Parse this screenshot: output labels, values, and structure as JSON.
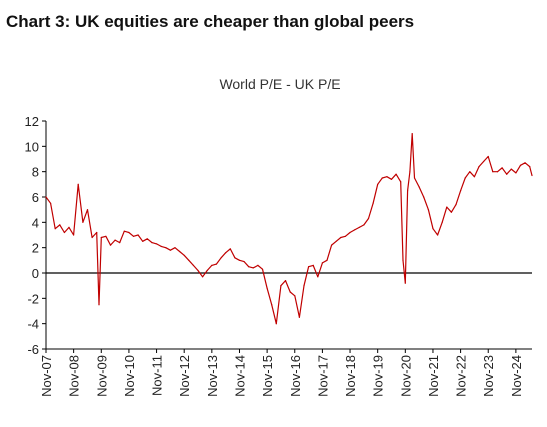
{
  "heading": "Chart 3: UK equities are cheaper than global peers",
  "chart_data": {
    "type": "line",
    "title": "World P/E - UK P/E",
    "xlabel": "",
    "ylabel": "",
    "ylim": [
      -6,
      12
    ],
    "yticks": [
      -6,
      -4,
      -2,
      0,
      2,
      4,
      6,
      8,
      10,
      12
    ],
    "xlim": [
      "2007-11",
      "2025-06"
    ],
    "xticks": [
      "Nov-07",
      "Nov-08",
      "Nov-09",
      "Nov-10",
      "Nov-11",
      "Nov-12",
      "Nov-13",
      "Nov-14",
      "Nov-15",
      "Nov-16",
      "Nov-17",
      "Nov-18",
      "Nov-19",
      "Nov-20",
      "Nov-21",
      "Nov-22",
      "Nov-23",
      "Nov-24"
    ],
    "grid": false,
    "line_color": "#C00000",
    "series": [
      {
        "x": [
          "2007-11",
          "2008-01",
          "2008-03",
          "2008-05",
          "2008-07",
          "2008-09",
          "2008-11",
          "2009-01",
          "2009-03",
          "2009-05",
          "2009-07",
          "2009-09",
          "2009-10",
          "2009-11",
          "2010-01",
          "2010-03",
          "2010-05",
          "2010-07",
          "2010-09",
          "2010-11",
          "2011-01",
          "2011-03",
          "2011-05",
          "2011-07",
          "2011-09",
          "2011-11",
          "2012-01",
          "2012-03",
          "2012-05",
          "2012-07",
          "2012-09",
          "2012-11",
          "2013-01",
          "2013-03",
          "2013-05",
          "2013-07",
          "2013-09",
          "2013-11",
          "2014-01",
          "2014-03",
          "2014-05",
          "2014-07",
          "2014-09",
          "2014-11",
          "2015-01",
          "2015-03",
          "2015-05",
          "2015-07",
          "2015-09",
          "2015-11",
          "2016-01",
          "2016-03",
          "2016-05",
          "2016-07",
          "2016-09",
          "2016-11",
          "2017-01",
          "2017-03",
          "2017-05",
          "2017-07",
          "2017-09",
          "2017-11",
          "2018-01",
          "2018-03",
          "2018-05",
          "2018-07",
          "2018-09",
          "2018-11",
          "2019-01",
          "2019-03",
          "2019-05",
          "2019-07",
          "2019-09",
          "2019-11",
          "2020-01",
          "2020-03",
          "2020-05",
          "2020-07",
          "2020-09",
          "2020-10",
          "2020-11",
          "2020-12",
          "2021-01",
          "2021-02",
          "2021-03",
          "2021-05",
          "2021-07",
          "2021-09",
          "2021-11",
          "2022-01",
          "2022-03",
          "2022-05",
          "2022-07",
          "2022-09",
          "2022-11",
          "2023-01",
          "2023-03",
          "2023-05",
          "2023-07",
          "2023-09",
          "2023-11",
          "2024-01",
          "2024-03",
          "2024-05",
          "2024-07",
          "2024-09",
          "2024-11",
          "2025-01",
          "2025-03",
          "2025-05",
          "2025-06"
        ],
        "y": [
          6.0,
          5.5,
          3.5,
          3.8,
          3.2,
          3.6,
          3.0,
          7.0,
          4.0,
          5.0,
          2.8,
          3.2,
          -2.5,
          2.8,
          2.9,
          2.2,
          2.6,
          2.4,
          3.3,
          3.2,
          2.9,
          3.0,
          2.5,
          2.7,
          2.4,
          2.3,
          2.1,
          2.0,
          1.8,
          2.0,
          1.7,
          1.4,
          1.0,
          0.6,
          0.2,
          -0.3,
          0.2,
          0.6,
          0.7,
          1.2,
          1.6,
          1.9,
          1.2,
          1.0,
          0.9,
          0.5,
          0.4,
          0.6,
          0.3,
          -1.2,
          -2.5,
          -4.0,
          -1.0,
          -0.6,
          -1.5,
          -1.8,
          -3.5,
          -1.0,
          0.5,
          0.6,
          -0.3,
          0.8,
          1.0,
          2.2,
          2.5,
          2.8,
          2.9,
          3.2,
          3.4,
          3.6,
          3.8,
          4.3,
          5.5,
          7.0,
          7.5,
          7.6,
          7.4,
          7.8,
          7.2,
          1.0,
          -0.8,
          6.5,
          8.0,
          11.0,
          7.5,
          6.8,
          6.0,
          5.0,
          3.5,
          3.0,
          4.0,
          5.2,
          4.8,
          5.4,
          6.5,
          7.5,
          8.0,
          7.6,
          8.4,
          8.8,
          9.2,
          8.0,
          8.0,
          8.3,
          7.8,
          8.2,
          7.9,
          8.5,
          8.7,
          8.4,
          7.7
        ]
      }
    ]
  }
}
